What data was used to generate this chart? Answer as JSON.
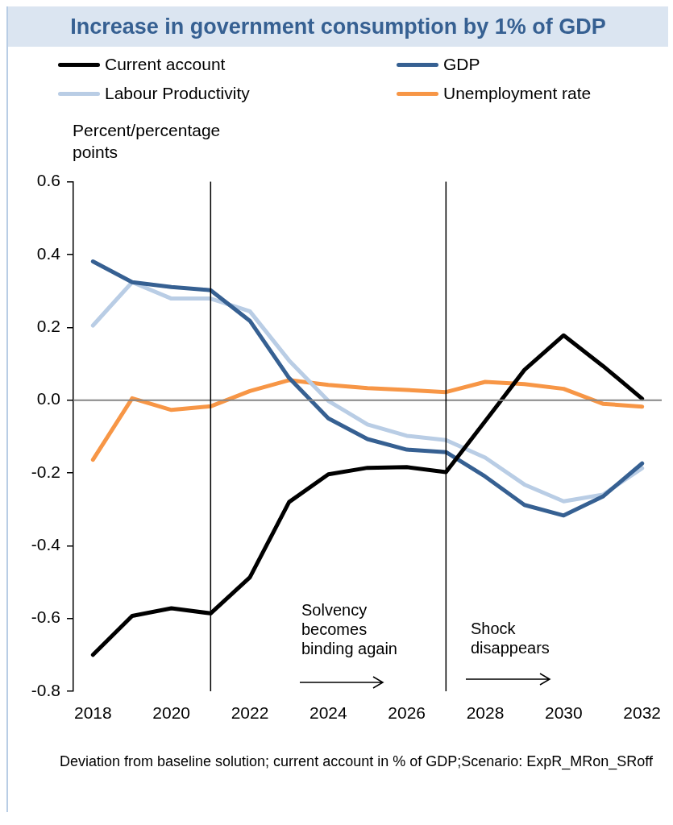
{
  "chart_data": {
    "type": "line",
    "title": "Increase in government consumption by 1% of GDP",
    "ylabel": "Percent/percentage points",
    "x": [
      2018,
      2019,
      2020,
      2021,
      2022,
      2023,
      2024,
      2025,
      2026,
      2027,
      2028,
      2029,
      2030,
      2031,
      2032
    ],
    "xlim": [
      2017.5,
      2032.5
    ],
    "xticks": [
      2018,
      2020,
      2022,
      2024,
      2026,
      2028,
      2030,
      2032
    ],
    "ylim": [
      -0.8,
      0.6
    ],
    "yticks": [
      -0.8,
      -0.6,
      -0.4,
      -0.2,
      {
        "value": 0,
        "label": "0.0"
      },
      0.2,
      0.4,
      0.6
    ],
    "series": [
      {
        "name": "Current account",
        "color": "#000000",
        "values": [
          -0.7,
          -0.593,
          -0.572,
          -0.586,
          -0.487,
          -0.28,
          -0.204,
          -0.186,
          -0.184,
          -0.198,
          -0.058,
          0.083,
          0.178,
          0.094,
          0.004
        ]
      },
      {
        "name": "GDP",
        "color": "#366092",
        "values": [
          0.381,
          0.324,
          0.311,
          0.302,
          0.218,
          0.061,
          -0.05,
          -0.107,
          -0.136,
          -0.143,
          -0.21,
          -0.288,
          -0.317,
          -0.265,
          -0.174
        ]
      },
      {
        "name": "Labour Productivity",
        "color": "#b9cde5",
        "values": [
          0.205,
          0.324,
          0.279,
          0.279,
          0.244,
          0.109,
          -0.002,
          -0.067,
          -0.098,
          -0.11,
          -0.158,
          -0.232,
          -0.278,
          -0.26,
          -0.187
        ]
      },
      {
        "name": "Unemployment rate",
        "color": "#f79646",
        "values": [
          -0.164,
          0.005,
          -0.027,
          -0.017,
          0.025,
          0.055,
          0.042,
          0.033,
          0.028,
          0.022,
          0.05,
          0.044,
          0.031,
          -0.01,
          -0.018
        ]
      }
    ],
    "ref_lines": [
      {
        "axis": "y",
        "value": 0,
        "color": "#868686"
      },
      {
        "axis": "x",
        "value": 2021,
        "color": "#000000"
      },
      {
        "axis": "x",
        "value": 2027,
        "color": "#000000"
      }
    ],
    "annotations": [
      "Solvency becomes binding again",
      "Shock disappears",
      "Deviation from baseline solution; current account in % of GDP;Scenario: ExpR_MRon_SRoff"
    ],
    "legend": "top",
    "marker": "none"
  }
}
